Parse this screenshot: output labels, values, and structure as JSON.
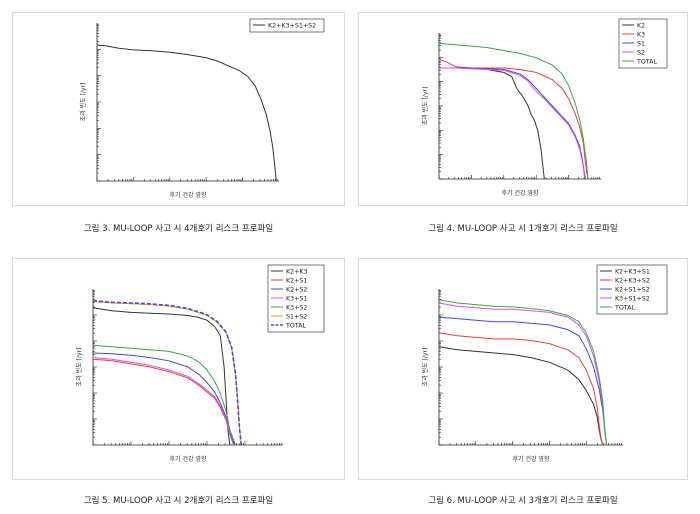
{
  "figures": [
    {
      "caption": "그림 3. MU-LOOP 사고 시 4개호기 리스크 프로파일"
    },
    {
      "caption": "그림 4. MU-LOOP 사고 시 1개호기 리스크 프로파일"
    },
    {
      "caption": "그림 5. MU-LOOP 사고 시 2개호기 리스크 프로파일"
    },
    {
      "caption": "그림 6. MU-LOOP 사고 시 3개호기 리스크 프로파일"
    }
  ],
  "chart_data": [
    {
      "type": "line",
      "xlabel": "후기 건강 영향",
      "ylabel": "초과 빈도 [/yr]",
      "xlim": [
        0,
        1
      ],
      "ylim": [
        0,
        1
      ],
      "legend_position": "top-right",
      "series": [
        {
          "name": "K2+K3+S1+S2",
          "color": "#333333",
          "dashed": false,
          "x": [
            0.0,
            0.05,
            0.12,
            0.2,
            0.3,
            0.4,
            0.5,
            0.6,
            0.66,
            0.72,
            0.78,
            0.83,
            0.87,
            0.9,
            0.93,
            0.95,
            0.965,
            0.975,
            0.98,
            0.985
          ],
          "y": [
            0.86,
            0.855,
            0.84,
            0.83,
            0.825,
            0.815,
            0.8,
            0.78,
            0.76,
            0.73,
            0.7,
            0.66,
            0.6,
            0.52,
            0.42,
            0.32,
            0.22,
            0.12,
            0.05,
            0.0
          ]
        }
      ]
    },
    {
      "type": "line",
      "xlabel": "후기 건강 영향",
      "ylabel": "초과 빈도 [/yr]",
      "xlim": [
        0,
        1
      ],
      "ylim": [
        0,
        1
      ],
      "legend_position": "top-right",
      "series": [
        {
          "name": "K2",
          "color": "#333333",
          "dashed": false,
          "x": [
            0.0,
            0.1,
            0.2,
            0.3,
            0.35,
            0.4,
            0.45,
            0.48,
            0.52,
            0.55,
            0.57,
            0.59,
            0.61,
            0.63,
            0.64,
            0.65
          ],
          "y": [
            0.76,
            0.76,
            0.76,
            0.75,
            0.74,
            0.73,
            0.7,
            0.62,
            0.56,
            0.5,
            0.44,
            0.4,
            0.33,
            0.2,
            0.1,
            0.0
          ]
        },
        {
          "name": "K3",
          "color": "#e8423b",
          "dashed": false,
          "x": [
            0.0,
            0.05,
            0.1,
            0.2,
            0.3,
            0.4,
            0.5,
            0.6,
            0.7,
            0.76,
            0.8,
            0.84,
            0.87,
            0.89,
            0.9,
            0.91,
            0.92
          ],
          "y": [
            0.82,
            0.8,
            0.77,
            0.76,
            0.76,
            0.76,
            0.75,
            0.73,
            0.68,
            0.62,
            0.55,
            0.45,
            0.35,
            0.25,
            0.15,
            0.06,
            0.0
          ]
        },
        {
          "name": "S1",
          "color": "#3f48e0",
          "dashed": false,
          "x": [
            0.0,
            0.1,
            0.2,
            0.3,
            0.4,
            0.5,
            0.55,
            0.6,
            0.65,
            0.7,
            0.75,
            0.8,
            0.84,
            0.87,
            0.89,
            0.9
          ],
          "y": [
            0.76,
            0.76,
            0.76,
            0.755,
            0.75,
            0.72,
            0.68,
            0.62,
            0.56,
            0.5,
            0.44,
            0.38,
            0.3,
            0.22,
            0.1,
            0.0
          ]
        },
        {
          "name": "S2",
          "color": "#e04ce8",
          "dashed": false,
          "x": [
            0.0,
            0.1,
            0.2,
            0.3,
            0.4,
            0.5,
            0.55,
            0.6,
            0.65,
            0.7,
            0.75,
            0.8,
            0.84,
            0.87,
            0.89,
            0.905
          ],
          "y": [
            0.76,
            0.76,
            0.755,
            0.75,
            0.745,
            0.71,
            0.67,
            0.6,
            0.55,
            0.49,
            0.43,
            0.37,
            0.29,
            0.2,
            0.09,
            0.0
          ]
        },
        {
          "name": "TOTAL",
          "color": "#3aa84a",
          "dashed": false,
          "x": [
            0.0,
            0.1,
            0.2,
            0.3,
            0.4,
            0.5,
            0.6,
            0.7,
            0.76,
            0.8,
            0.84,
            0.87,
            0.89,
            0.91,
            0.92
          ],
          "y": [
            0.93,
            0.92,
            0.91,
            0.9,
            0.88,
            0.86,
            0.83,
            0.78,
            0.72,
            0.64,
            0.52,
            0.4,
            0.28,
            0.12,
            0.0
          ]
        }
      ]
    },
    {
      "type": "line",
      "xlabel": "후기 건강 영향",
      "ylabel": "초과 빈도 [/yr]",
      "xlim": [
        0,
        1
      ],
      "ylim": [
        0,
        1
      ],
      "legend_position": "top-right",
      "series": [
        {
          "name": "K2+K3",
          "color": "#333333",
          "dashed": false,
          "x": [
            0.0,
            0.05,
            0.1,
            0.2,
            0.3,
            0.4,
            0.5,
            0.55,
            0.6,
            0.64,
            0.67,
            0.69,
            0.7,
            0.71,
            0.72
          ],
          "y": [
            0.88,
            0.87,
            0.86,
            0.85,
            0.845,
            0.84,
            0.83,
            0.82,
            0.8,
            0.76,
            0.7,
            0.5,
            0.3,
            0.1,
            0.0
          ]
        },
        {
          "name": "K2+S1",
          "color": "#e8423b",
          "dashed": false,
          "x": [
            0.0,
            0.1,
            0.2,
            0.3,
            0.4,
            0.5,
            0.56,
            0.6,
            0.64,
            0.67,
            0.7,
            0.72,
            0.74
          ],
          "y": [
            0.55,
            0.54,
            0.52,
            0.5,
            0.47,
            0.43,
            0.38,
            0.34,
            0.3,
            0.24,
            0.16,
            0.07,
            0.0
          ]
        },
        {
          "name": "K2+S2",
          "color": "#3f48e0",
          "dashed": false,
          "x": [
            0.0,
            0.1,
            0.2,
            0.3,
            0.4,
            0.5,
            0.56,
            0.6,
            0.64,
            0.67,
            0.7,
            0.72,
            0.745
          ],
          "y": [
            0.59,
            0.585,
            0.575,
            0.56,
            0.54,
            0.5,
            0.45,
            0.4,
            0.34,
            0.27,
            0.18,
            0.08,
            0.0
          ]
        },
        {
          "name": "K3+S1",
          "color": "#e04ce8",
          "dashed": false,
          "x": [
            0.0,
            0.1,
            0.2,
            0.3,
            0.4,
            0.5,
            0.56,
            0.6,
            0.64,
            0.67,
            0.7,
            0.72,
            0.74
          ],
          "y": [
            0.56,
            0.55,
            0.53,
            0.51,
            0.48,
            0.44,
            0.39,
            0.35,
            0.31,
            0.25,
            0.17,
            0.07,
            0.0
          ]
        },
        {
          "name": "K3+S2",
          "color": "#3aa84a",
          "dashed": false,
          "x": [
            0.0,
            0.1,
            0.2,
            0.3,
            0.4,
            0.5,
            0.56,
            0.6,
            0.64,
            0.67,
            0.7,
            0.72,
            0.75
          ],
          "y": [
            0.64,
            0.63,
            0.62,
            0.61,
            0.6,
            0.57,
            0.53,
            0.48,
            0.41,
            0.33,
            0.22,
            0.1,
            0.0
          ]
        },
        {
          "name": "S1+S2",
          "color": "#d4a12a",
          "dashed": false,
          "x": [
            0.0,
            0.1,
            0.2,
            0.3,
            0.4,
            0.5,
            0.6,
            0.65,
            0.7,
            0.73,
            0.75,
            0.76,
            0.77,
            0.78
          ],
          "y": [
            0.92,
            0.91,
            0.905,
            0.9,
            0.89,
            0.87,
            0.83,
            0.79,
            0.72,
            0.62,
            0.45,
            0.3,
            0.12,
            0.0
          ]
        },
        {
          "name": "TOTAL",
          "color": "#5a3ee6",
          "dashed": true,
          "x": [
            0.0,
            0.1,
            0.2,
            0.3,
            0.4,
            0.5,
            0.6,
            0.65,
            0.7,
            0.73,
            0.75,
            0.76,
            0.77,
            0.78
          ],
          "y": [
            0.925,
            0.915,
            0.91,
            0.905,
            0.895,
            0.875,
            0.835,
            0.795,
            0.725,
            0.625,
            0.455,
            0.305,
            0.125,
            0.0
          ]
        }
      ]
    },
    {
      "type": "line",
      "xlabel": "후기 건강 영향",
      "ylabel": "초과 빈도 [/yr]",
      "xlim": [
        0,
        1
      ],
      "ylim": [
        0,
        1
      ],
      "legend_position": "top-right",
      "series": [
        {
          "name": "K2+K3+S1",
          "color": "#333333",
          "dashed": false,
          "x": [
            0.0,
            0.1,
            0.2,
            0.3,
            0.4,
            0.5,
            0.6,
            0.7,
            0.76,
            0.8,
            0.84,
            0.86,
            0.87,
            0.88,
            0.89
          ],
          "y": [
            0.63,
            0.61,
            0.6,
            0.59,
            0.58,
            0.56,
            0.53,
            0.48,
            0.42,
            0.35,
            0.26,
            0.18,
            0.1,
            0.04,
            0.0
          ]
        },
        {
          "name": "K2+K3+S2",
          "color": "#e8423b",
          "dashed": false,
          "x": [
            0.0,
            0.1,
            0.2,
            0.3,
            0.4,
            0.5,
            0.6,
            0.7,
            0.76,
            0.8,
            0.84,
            0.86,
            0.87,
            0.88,
            0.89
          ],
          "y": [
            0.72,
            0.7,
            0.69,
            0.68,
            0.68,
            0.67,
            0.65,
            0.61,
            0.56,
            0.48,
            0.36,
            0.24,
            0.13,
            0.05,
            0.0
          ]
        },
        {
          "name": "K2+S1+S2",
          "color": "#3f48e0",
          "dashed": false,
          "x": [
            0.0,
            0.1,
            0.2,
            0.3,
            0.4,
            0.5,
            0.6,
            0.7,
            0.76,
            0.8,
            0.84,
            0.87,
            0.89,
            0.9,
            0.91
          ],
          "y": [
            0.82,
            0.81,
            0.8,
            0.79,
            0.79,
            0.78,
            0.77,
            0.74,
            0.7,
            0.62,
            0.5,
            0.36,
            0.22,
            0.1,
            0.0
          ]
        },
        {
          "name": "K3+S1+S2",
          "color": "#e04ce8",
          "dashed": false,
          "x": [
            0.0,
            0.1,
            0.2,
            0.3,
            0.4,
            0.5,
            0.6,
            0.7,
            0.76,
            0.8,
            0.84,
            0.87,
            0.89,
            0.9,
            0.91
          ],
          "y": [
            0.91,
            0.89,
            0.88,
            0.87,
            0.87,
            0.86,
            0.85,
            0.82,
            0.77,
            0.7,
            0.57,
            0.41,
            0.25,
            0.11,
            0.0
          ]
        },
        {
          "name": "TOTAL",
          "color": "#3aa84a",
          "dashed": false,
          "x": [
            0.0,
            0.1,
            0.2,
            0.3,
            0.4,
            0.5,
            0.6,
            0.7,
            0.76,
            0.8,
            0.84,
            0.87,
            0.89,
            0.9,
            0.91
          ],
          "y": [
            0.93,
            0.91,
            0.9,
            0.89,
            0.885,
            0.875,
            0.86,
            0.83,
            0.79,
            0.72,
            0.6,
            0.44,
            0.28,
            0.12,
            0.0
          ]
        }
      ]
    }
  ]
}
